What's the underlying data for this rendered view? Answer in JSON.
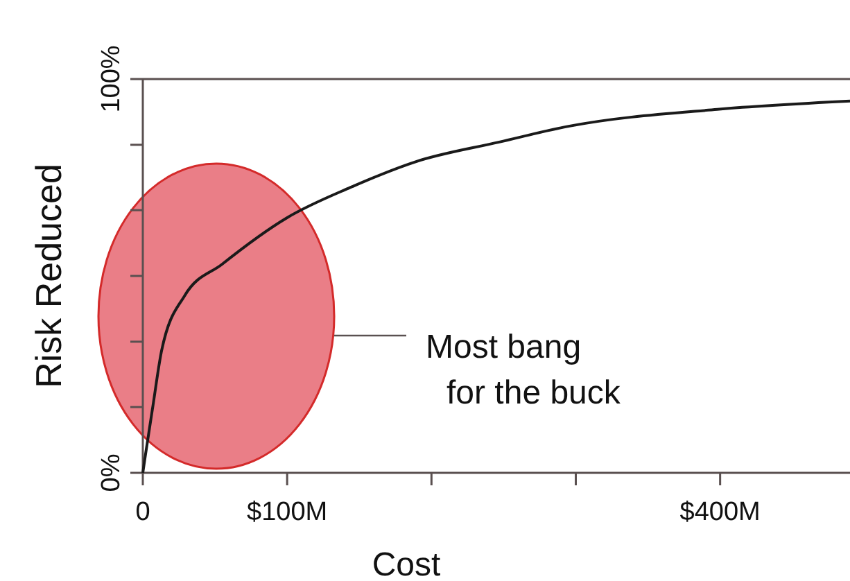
{
  "chart_data": {
    "type": "line",
    "xlabel": "Cost",
    "ylabel": "Risk Reduced",
    "x": [
      0,
      2,
      7,
      13,
      29,
      55,
      100,
      144,
      189,
      247,
      295,
      398,
      490
    ],
    "series": [
      {
        "color": "#1a1a1a",
        "values": [
          0,
          5,
          17,
          31,
          45,
          53,
          64.8,
          72.5,
          79,
          84,
          88,
          92.3,
          94.4
        ]
      }
    ],
    "xlim": [
      0,
      490
    ],
    "xticks": [
      {
        "value": 0,
        "label": "0"
      },
      {
        "value": 100,
        "label": "$100M"
      },
      {
        "value": 200,
        "label": null
      },
      {
        "value": 300,
        "label": null
      },
      {
        "value": 400,
        "label": "$400M"
      }
    ],
    "ylim": [
      0,
      100
    ],
    "yticks": [
      {
        "value": 0,
        "label": "0%"
      },
      {
        "value": 16.7,
        "label": null
      },
      {
        "value": 33.3,
        "label": null
      },
      {
        "value": 50,
        "label": null
      },
      {
        "value": 66.7,
        "label": null
      },
      {
        "value": 83.3,
        "label": null
      },
      {
        "value": 100,
        "label": "100%"
      }
    ],
    "grid": false,
    "marker": "none",
    "line_style": "solid",
    "annotations": [
      "Most bang for the buck"
    ]
  }
}
